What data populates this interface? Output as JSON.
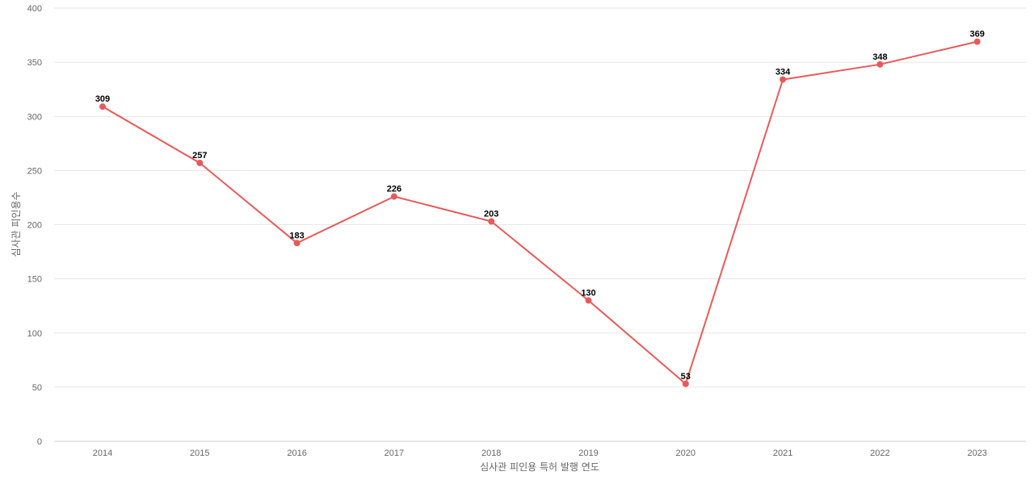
{
  "chart_data": {
    "type": "line",
    "categories": [
      "2014",
      "2015",
      "2016",
      "2017",
      "2018",
      "2019",
      "2020",
      "2021",
      "2022",
      "2023"
    ],
    "series": [
      {
        "values": [
          309,
          257,
          183,
          226,
          203,
          130,
          53,
          334,
          348,
          369
        ]
      }
    ],
    "title": "",
    "xlabel": "심사관 피인용 특허 발행 연도",
    "ylabel": "심사관 피인용수",
    "ylim": [
      0,
      400
    ],
    "yticks": [
      0,
      50,
      100,
      150,
      200,
      250,
      300,
      350,
      400
    ],
    "grid": true,
    "legend": "none",
    "colors": {
      "line": "#e85a5a",
      "grid": "#e6e6e6",
      "tick_text": "#666666",
      "label_text": "#000000"
    }
  }
}
